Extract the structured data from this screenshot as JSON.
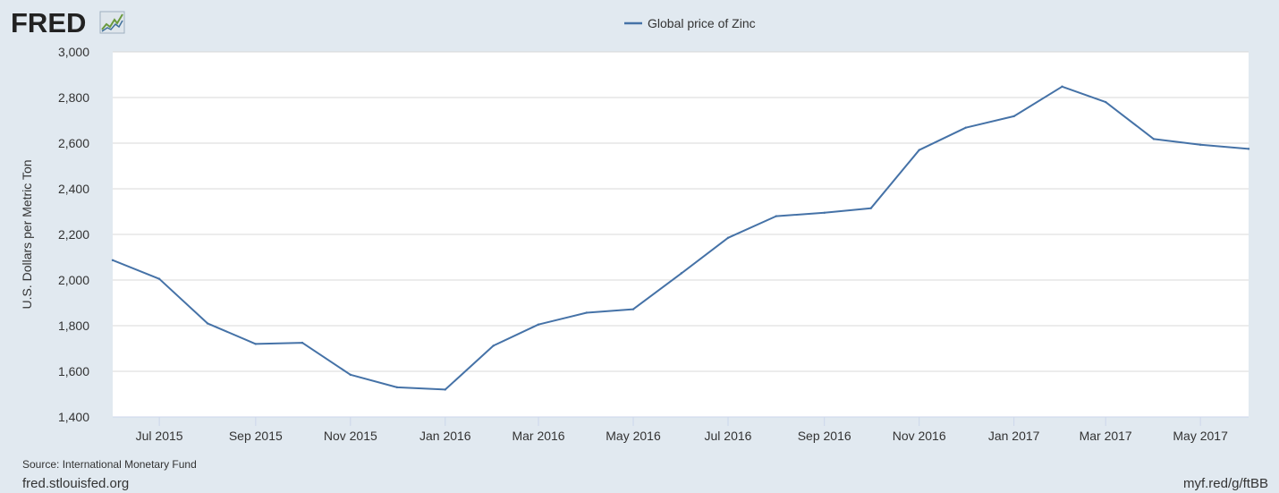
{
  "brand": {
    "logo_text": "FRED"
  },
  "colors": {
    "background": "#e1e9f0",
    "plot_background": "#ffffff",
    "series_line": "#4572a7",
    "gridline": "#d8d8d8",
    "logo": "#222222"
  },
  "icons": {
    "logo_graph": "trend-chart-icon"
  },
  "chart_data": {
    "type": "line",
    "title": "",
    "xlabel": "",
    "ylabel": "U.S. Dollars per Metric Ton",
    "ylim": [
      1400,
      3000
    ],
    "yticks": [
      "1,400",
      "1,600",
      "1,800",
      "2,000",
      "2,200",
      "2,400",
      "2,600",
      "2,800",
      "3,000"
    ],
    "ytick_values": [
      1400,
      1600,
      1800,
      2000,
      2200,
      2400,
      2600,
      2800,
      3000
    ],
    "xticks": [
      "Jul 2015",
      "Sep 2015",
      "Nov 2015",
      "Jan 2016",
      "Mar 2016",
      "May 2016",
      "Jul 2016",
      "Sep 2016",
      "Nov 2016",
      "Jan 2017",
      "Mar 2017",
      "May 2017"
    ],
    "xtick_dates": [
      "2015-07-01",
      "2015-09-01",
      "2015-11-01",
      "2016-01-01",
      "2016-03-01",
      "2016-05-01",
      "2016-07-01",
      "2016-09-01",
      "2016-11-01",
      "2017-01-01",
      "2017-03-01",
      "2017-05-01"
    ],
    "xlim": [
      "2015-06-01",
      "2017-06-01"
    ],
    "grid": true,
    "legend_position": "top-center",
    "series": [
      {
        "name": "Global price of Zinc",
        "x": [
          "2015-06-01",
          "2015-07-01",
          "2015-08-01",
          "2015-09-01",
          "2015-10-01",
          "2015-11-01",
          "2015-12-01",
          "2016-01-01",
          "2016-02-01",
          "2016-03-01",
          "2016-04-01",
          "2016-05-01",
          "2016-06-01",
          "2016-07-01",
          "2016-08-01",
          "2016-09-01",
          "2016-10-01",
          "2016-11-01",
          "2016-12-01",
          "2017-01-01",
          "2017-02-01",
          "2017-03-01",
          "2017-04-01",
          "2017-05-01",
          "2017-06-01"
        ],
        "values": [
          2087,
          2005,
          1810,
          1720,
          1725,
          1585,
          1530,
          1520,
          1712,
          1805,
          1857,
          1872,
          2030,
          2185,
          2280,
          2295,
          2315,
          2570,
          2668,
          2718,
          2848,
          2780,
          2618,
          2593,
          2575
        ]
      }
    ]
  },
  "footer": {
    "source": "Source: International Monetary Fund",
    "site": "fred.stlouisfed.org",
    "short_url": "myf.red/g/ftBB"
  }
}
